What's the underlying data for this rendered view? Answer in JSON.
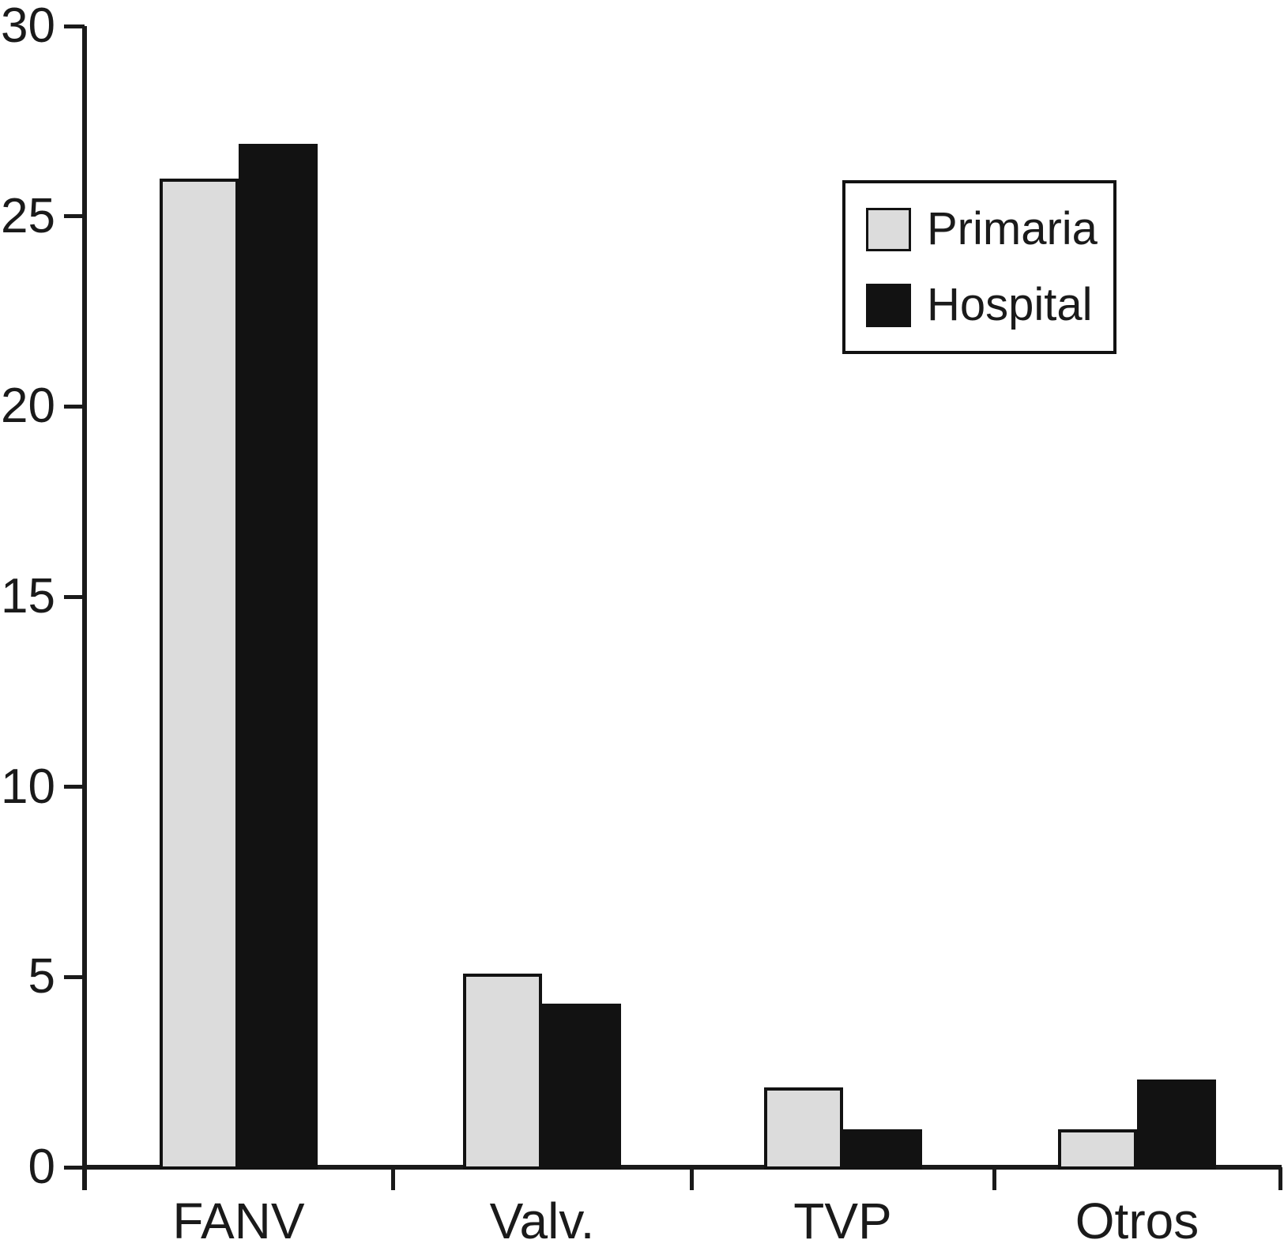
{
  "chart_data": {
    "type": "bar",
    "categories": [
      "FANV",
      "Valv.",
      "TVP",
      "Otros"
    ],
    "series": [
      {
        "name": "Primaria",
        "color": "#dcdcdc",
        "values": [
          26,
          5.1,
          2.1,
          1.0
        ]
      },
      {
        "name": "Hospital",
        "color": "#121212",
        "values": [
          26.9,
          4.3,
          1.0,
          2.3
        ]
      }
    ],
    "title": "",
    "xlabel": "",
    "ylabel": "",
    "ylim": [
      0,
      30
    ],
    "yticks": [
      0,
      5,
      10,
      15,
      20,
      25,
      30
    ],
    "grid": false,
    "legend": {
      "position": "top-right",
      "entries": [
        "Primaria",
        "Hospital"
      ]
    }
  }
}
